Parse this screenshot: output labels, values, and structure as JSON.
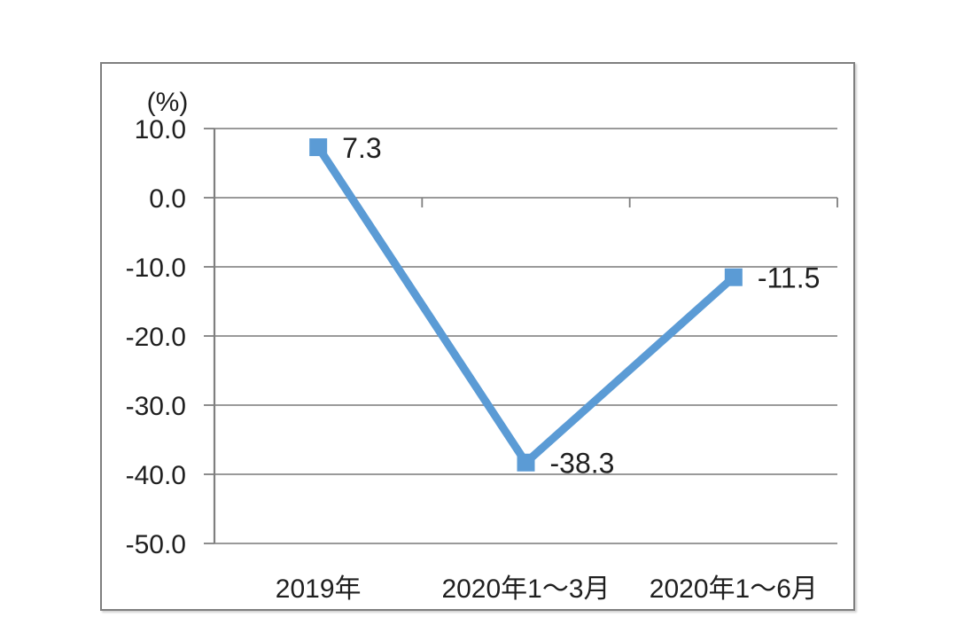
{
  "page": {
    "background_color": "#ffffff"
  },
  "chart_data": {
    "type": "line",
    "title": "",
    "unit_label": "(%)",
    "categories": [
      "2019年",
      "2020年1～3月",
      "2020年1～6月"
    ],
    "series": [
      {
        "name": "",
        "values": [
          7.3,
          -38.3,
          -11.5
        ]
      }
    ],
    "data_labels": [
      "7.3",
      "-38.3",
      "-11.5"
    ],
    "yticks": [
      "10.0",
      "0.0",
      "-10.0",
      "-20.0",
      "-30.0",
      "-40.0",
      "-50.0"
    ],
    "ytick_values": [
      10,
      0,
      -10,
      -20,
      -30,
      -40,
      -50
    ],
    "ylim": [
      -50,
      10
    ],
    "xlabel": "",
    "ylabel": "(%)",
    "grid": true,
    "legend_position": "none",
    "marker": "square",
    "line_color": "#5b9bd5",
    "grid_color": "#8c8c8c",
    "axis_color": "#7f7f7f",
    "text_color": "#1f1f1f",
    "frame_border_color": "#7f7f7f"
  }
}
